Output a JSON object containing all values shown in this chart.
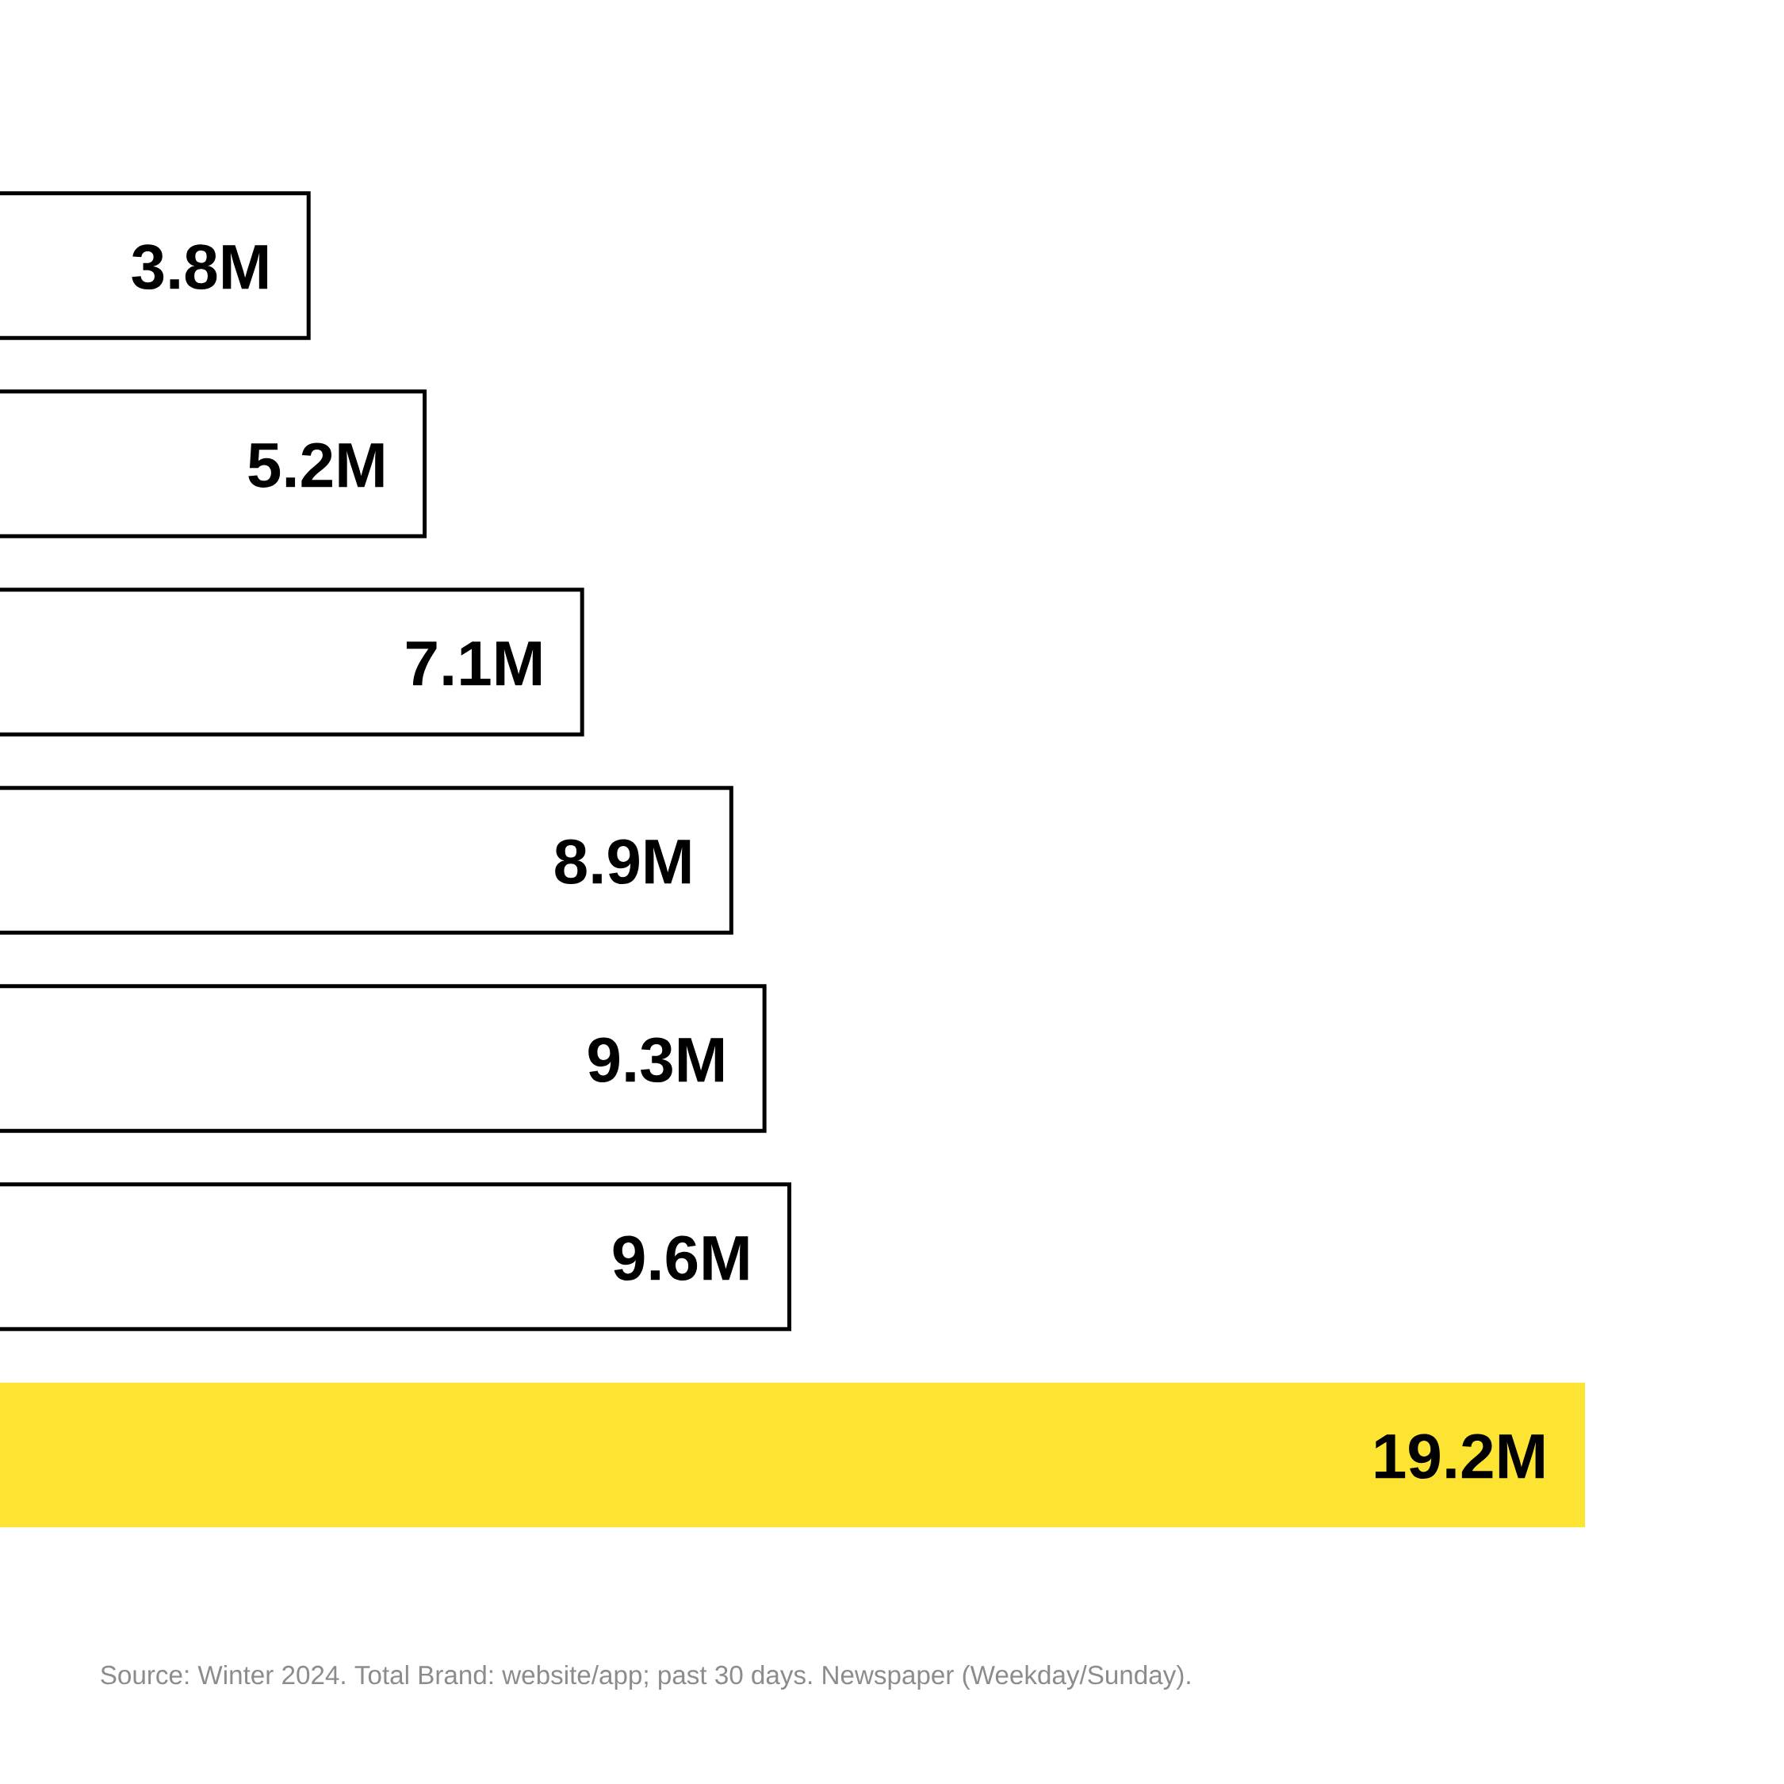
{
  "chart_data": {
    "type": "bar",
    "orientation": "horizontal",
    "categories": [
      null,
      null,
      null,
      null,
      null,
      null,
      null
    ],
    "values": [
      3.8,
      5.2,
      7.1,
      8.9,
      9.3,
      9.6,
      19.2
    ],
    "value_labels": [
      "3.8M",
      "5.2M",
      "7.1M",
      "8.9M",
      "9.3M",
      "9.6M",
      "19.2M"
    ],
    "colors": [
      "#ffffff",
      "#ffffff",
      "#ffffff",
      "#ffffff",
      "#ffffff",
      "#ffffff",
      "#fde433"
    ],
    "tick_labels": false,
    "annotations": [
      "Source: Winter 2024. Total Brand: website/app; past 30 days. Newspaper (Weekday/Sunday)."
    ]
  }
}
